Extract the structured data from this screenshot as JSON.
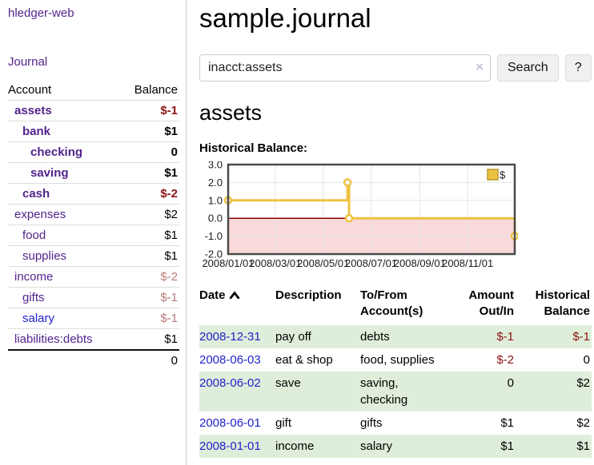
{
  "sidebar": {
    "app_title": "hledger-web",
    "journal_link": "Journal",
    "account_header": "Account",
    "balance_header": "Balance",
    "rows": [
      {
        "account": "assets",
        "balance": "$-1"
      },
      {
        "account": "bank",
        "balance": "$1"
      },
      {
        "account": "checking",
        "balance": "0"
      },
      {
        "account": "saving",
        "balance": "$1"
      },
      {
        "account": "cash",
        "balance": "$-2"
      },
      {
        "account": "expenses",
        "balance": "$2"
      },
      {
        "account": "food",
        "balance": "$1"
      },
      {
        "account": "supplies",
        "balance": "$1"
      },
      {
        "account": "income",
        "balance": "$-2"
      },
      {
        "account": "gifts",
        "balance": "$-1"
      },
      {
        "account": "salary",
        "balance": "$-1"
      },
      {
        "account": "liabilities:debts",
        "balance": "$1"
      }
    ],
    "total": "0"
  },
  "header": {
    "title": "sample.journal"
  },
  "search": {
    "value": "inacct:assets",
    "clear_icon": "×",
    "button_label": "Search",
    "help_label": "?"
  },
  "account_page": {
    "title": "assets",
    "chart_label": "Historical Balance:"
  },
  "chart_data": {
    "type": "line",
    "step": true,
    "title": "Historical Balance",
    "xlabel": "",
    "ylabel": "",
    "ylim": [
      -2,
      3
    ],
    "y_ticks": [
      "3.0",
      "2.0",
      "1.0",
      "0.0",
      "-1.0",
      "-2.0"
    ],
    "x_range": [
      "2008-01-01",
      "2008-12-31"
    ],
    "x_ticks": [
      {
        "date": "2008-01-01",
        "label": "2008/01/01"
      },
      {
        "date": "2008-03-01",
        "label": "2008/03/01"
      },
      {
        "date": "2008-05-01",
        "label": "2008/05/01"
      },
      {
        "date": "2008-07-01",
        "label": "2008/07/01"
      },
      {
        "date": "2008-09-01",
        "label": "2008/09/01"
      },
      {
        "date": "2008-11-01",
        "label": "2008/11/01"
      }
    ],
    "series": [
      {
        "name": "$",
        "color": "#edc240",
        "points": [
          [
            "2008-01-01",
            1
          ],
          [
            "2008-06-01",
            2
          ],
          [
            "2008-06-03",
            0
          ],
          [
            "2008-12-31",
            -1
          ]
        ]
      }
    ],
    "legend": {
      "label": "$",
      "position": "top-right"
    },
    "grid": true,
    "gridline_color": "#e6e6e6",
    "negative_region_color": "#f9d9d9",
    "zero_line_color": "#8b0000",
    "border_color": "#4a4a4a"
  },
  "register": {
    "headers": {
      "date": "Date",
      "description": "Description",
      "account": "To/From Account(s)",
      "amount": "Amount Out/In",
      "balance": "Historical Balance"
    },
    "rows": [
      {
        "date": "2008-12-31",
        "description": "pay off",
        "accounts": "debts",
        "amount": "$-1",
        "balance": "$-1"
      },
      {
        "date": "2008-06-03",
        "description": "eat & shop",
        "accounts": "food, supplies",
        "amount": "$-2",
        "balance": "0"
      },
      {
        "date": "2008-06-02",
        "description": "save",
        "accounts": "saving, checking",
        "amount": "0",
        "balance": "$2"
      },
      {
        "date": "2008-06-01",
        "description": "gift",
        "accounts": "gifts",
        "amount": "$1",
        "balance": "$2"
      },
      {
        "date": "2008-01-01",
        "description": "income",
        "accounts": "salary",
        "amount": "$1",
        "balance": "$1"
      }
    ]
  },
  "colors": {
    "link_purple": "#53248c",
    "link_blue": "#2222cc",
    "negative": "#8b1414",
    "negative_faded": "#b87a7a",
    "row_green": "#dfeeda",
    "chart_yellow": "#edc240"
  }
}
